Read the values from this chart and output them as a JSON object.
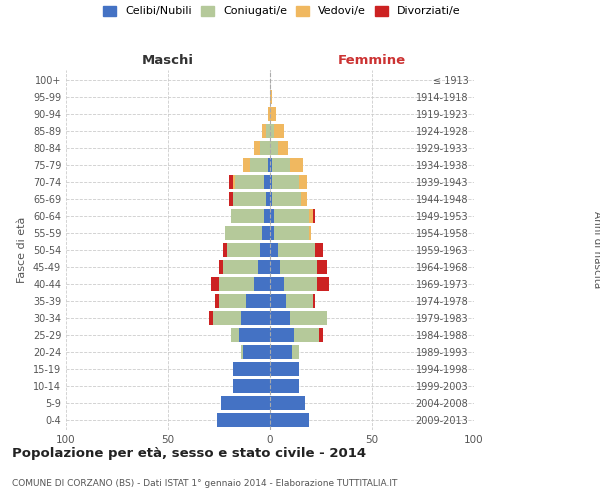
{
  "age_groups": [
    "0-4",
    "5-9",
    "10-14",
    "15-19",
    "20-24",
    "25-29",
    "30-34",
    "35-39",
    "40-44",
    "45-49",
    "50-54",
    "55-59",
    "60-64",
    "65-69",
    "70-74",
    "75-79",
    "80-84",
    "85-89",
    "90-94",
    "95-99",
    "100+"
  ],
  "birth_years": [
    "2009-2013",
    "2004-2008",
    "1999-2003",
    "1994-1998",
    "1989-1993",
    "1984-1988",
    "1979-1983",
    "1974-1978",
    "1969-1973",
    "1964-1968",
    "1959-1963",
    "1954-1958",
    "1949-1953",
    "1944-1948",
    "1939-1943",
    "1934-1938",
    "1929-1933",
    "1924-1928",
    "1919-1923",
    "1914-1918",
    "≤ 1913"
  ],
  "males_celibi": [
    26,
    24,
    18,
    18,
    13,
    15,
    14,
    12,
    8,
    6,
    5,
    4,
    3,
    2,
    3,
    1,
    0,
    0,
    0,
    0,
    0
  ],
  "males_coniugati": [
    0,
    0,
    0,
    0,
    1,
    4,
    14,
    13,
    17,
    17,
    16,
    18,
    16,
    16,
    14,
    9,
    5,
    2,
    0,
    0,
    0
  ],
  "males_vedovi": [
    0,
    0,
    0,
    0,
    0,
    0,
    0,
    0,
    0,
    0,
    0,
    0,
    0,
    0,
    1,
    3,
    3,
    2,
    1,
    0,
    0
  ],
  "males_divorziati": [
    0,
    0,
    0,
    0,
    0,
    0,
    2,
    2,
    4,
    2,
    2,
    0,
    0,
    2,
    2,
    0,
    0,
    0,
    0,
    0,
    0
  ],
  "females_nubili": [
    19,
    17,
    14,
    14,
    11,
    12,
    10,
    8,
    7,
    5,
    4,
    2,
    2,
    1,
    1,
    1,
    0,
    0,
    0,
    0,
    0
  ],
  "females_coniugate": [
    0,
    0,
    0,
    0,
    3,
    12,
    18,
    13,
    16,
    18,
    18,
    17,
    17,
    14,
    13,
    9,
    4,
    2,
    0,
    0,
    0
  ],
  "females_vedove": [
    0,
    0,
    0,
    0,
    0,
    0,
    0,
    0,
    0,
    0,
    0,
    1,
    2,
    3,
    4,
    6,
    5,
    5,
    3,
    1,
    0
  ],
  "females_divorziate": [
    0,
    0,
    0,
    0,
    0,
    2,
    0,
    1,
    6,
    5,
    4,
    0,
    1,
    0,
    0,
    0,
    0,
    0,
    0,
    0,
    0
  ],
  "color_celibi": "#4472c4",
  "color_coniugati": "#b5c99a",
  "color_vedovi": "#f0b860",
  "color_divorziati": "#cc2222",
  "xlim": 100,
  "title": "Popolazione per età, sesso e stato civile - 2014",
  "subtitle": "COMUNE DI CORZANO (BS) - Dati ISTAT 1° gennaio 2014 - Elaborazione TUTTITALIA.IT",
  "ylabel_left": "Fasce di età",
  "ylabel_right": "Anni di nascita",
  "xlabel_left": "Maschi",
  "xlabel_right": "Femmine",
  "bg_color": "#ffffff",
  "grid_color": "#cccccc",
  "bar_height": 0.82
}
